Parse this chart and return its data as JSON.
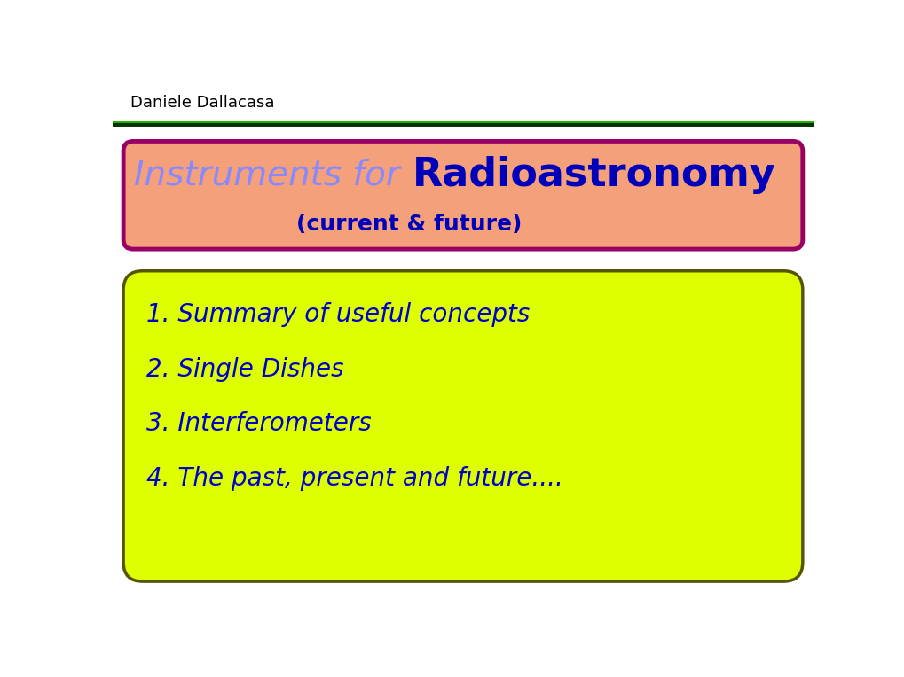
{
  "background_color": "#ffffff",
  "header_text": "Daniele Dallacasa",
  "header_color": "#000000",
  "header_fontsize": 13,
  "title_box_bg": "#f4a07a",
  "title_box_border": "#990066",
  "title_text1": "Instruments for ",
  "title_text2": "Radioastronomy",
  "title_color1": "#8888ff",
  "title_color2": "#0000bb",
  "title_fontsize1": 28,
  "title_fontsize2": 32,
  "subtitle_text": "(current & future)",
  "subtitle_color": "#0000bb",
  "subtitle_fontsize": 18,
  "content_box_bg": "#ddff00",
  "content_box_border": "#555500",
  "content_items": [
    "1. Summary of useful concepts",
    "2. Single Dishes",
    "3. Interferometers",
    "4. The past, present and future...."
  ],
  "content_color": "#0000cc",
  "content_fontsize": 20
}
